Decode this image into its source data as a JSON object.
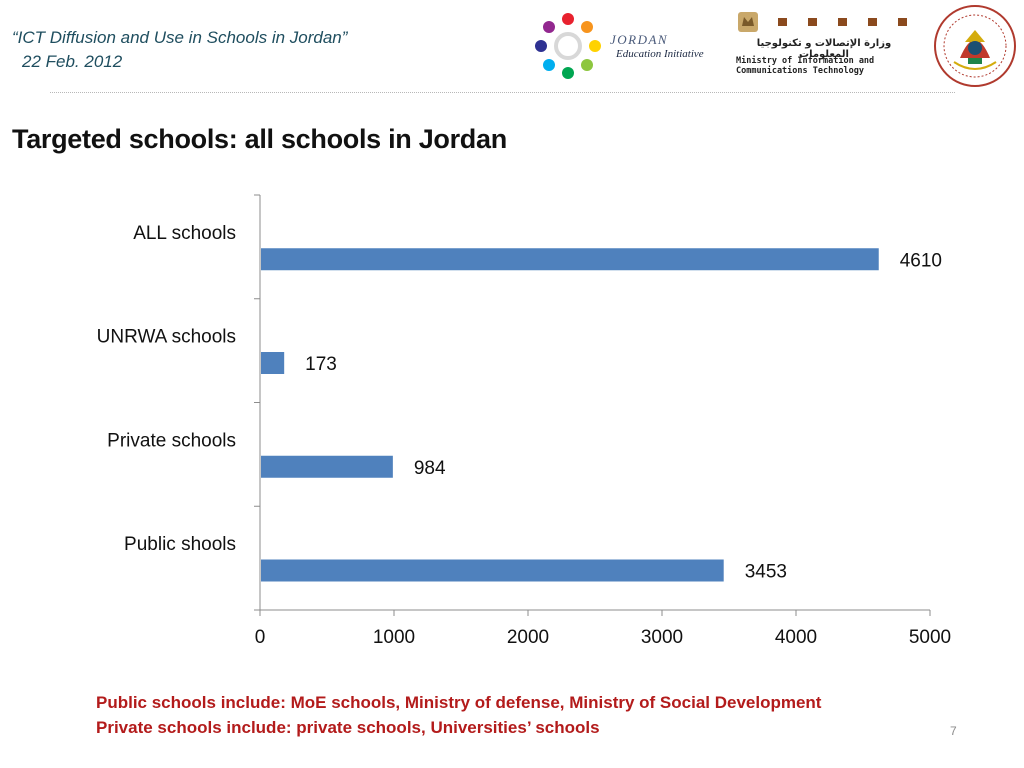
{
  "header": {
    "title_line1": "“ICT  Diffusion and Use in Schools in Jordan”",
    "title_line2": "22 Feb. 2012"
  },
  "logos": {
    "jei": {
      "icon": "jordan-education-initiative-logo",
      "word": "JORDAN",
      "subtitle": "Education Initiative"
    },
    "mit": {
      "icon": "ministry-ict-logo",
      "arabic": "وزارة الإتصالات و تكنولوجيا المعلومات",
      "english_line1": "Ministry of Information and",
      "english_line2": "Communications Technology"
    },
    "moe": {
      "icon": "ministry-of-education-emblem"
    }
  },
  "slide_title": "Targeted schools: all schools in Jordan",
  "chart_data": {
    "type": "bar",
    "orientation": "horizontal",
    "categories": [
      "ALL schools",
      "UNRWA schools",
      "Private schools",
      "Public shools"
    ],
    "values": [
      4610,
      173,
      984,
      3453
    ],
    "data_labels": [
      "4610",
      "173",
      "984",
      "3453"
    ],
    "xlim": [
      0,
      5000
    ],
    "x_ticks": [
      0,
      1000,
      2000,
      3000,
      4000,
      5000
    ],
    "bar_color": "#4f81bd",
    "grid": false,
    "legend": "none"
  },
  "notes": {
    "line1": "Public schools include: MoE schools, Ministry of defense,  Ministry of Social Development",
    "line2": "Private schools include: private schools, Universities’ schools"
  },
  "slide_number": "7",
  "colors": {
    "note_text": "#b31b1b",
    "header_text": "#1f4e5f"
  }
}
